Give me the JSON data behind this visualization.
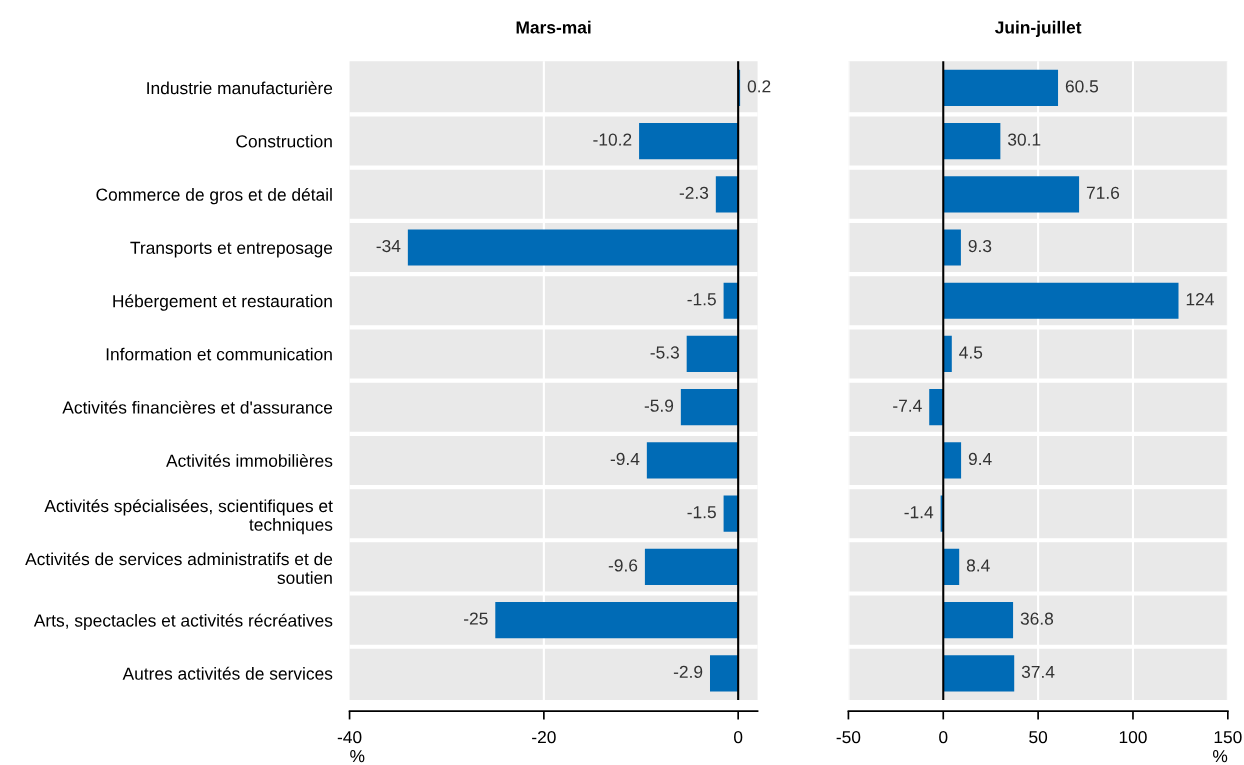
{
  "chart_data": [
    {
      "type": "bar",
      "orientation": "horizontal",
      "title": "Mars-mai",
      "xlabel": "%",
      "categories": [
        "Industrie manufacturière",
        "Construction",
        "Commerce de gros et de détail",
        "Transports et entreposage",
        "Hébergement et restauration",
        "Information et communication",
        "Activités financières et d'assurance",
        "Activités immobilières",
        "Activités spécialisées, scientifiques et\ntechniques",
        "Activités de services administratifs et de\nsoutien",
        "Arts, spectacles et activités récréatives",
        "Autres activités de services"
      ],
      "values": [
        0.2,
        -10.2,
        -2.3,
        -34,
        -1.5,
        -5.3,
        -5.9,
        -9.4,
        -1.5,
        -9.6,
        -25,
        -2.9
      ],
      "color": "#006bb6",
      "data_labels": true,
      "xlim": [
        -40,
        2
      ],
      "xticks": [
        -40,
        -20,
        0
      ],
      "ref_lines": [
        {
          "axis": "x",
          "value": -20,
          "color": "#ffffff"
        },
        {
          "axis": "x",
          "value": 0,
          "color": "#000000"
        }
      ]
    },
    {
      "type": "bar",
      "orientation": "horizontal",
      "title": "Juin-juillet",
      "xlabel": "%",
      "categories": [
        null,
        null,
        null,
        null,
        null,
        null,
        null,
        null,
        null,
        null,
        null,
        null
      ],
      "values": [
        60.5,
        30.1,
        71.6,
        9.3,
        124,
        4.5,
        -7.4,
        9.4,
        -1.4,
        8.4,
        36.8,
        37.4
      ],
      "color": "#006bb6",
      "data_labels": true,
      "xlim": [
        -50,
        150
      ],
      "xticks": [
        -50,
        0,
        50,
        100,
        150
      ],
      "grid": "x",
      "tick_labels": "x",
      "ref_lines": [
        {
          "axis": "x",
          "value": 0,
          "color": "#000000"
        }
      ]
    }
  ]
}
